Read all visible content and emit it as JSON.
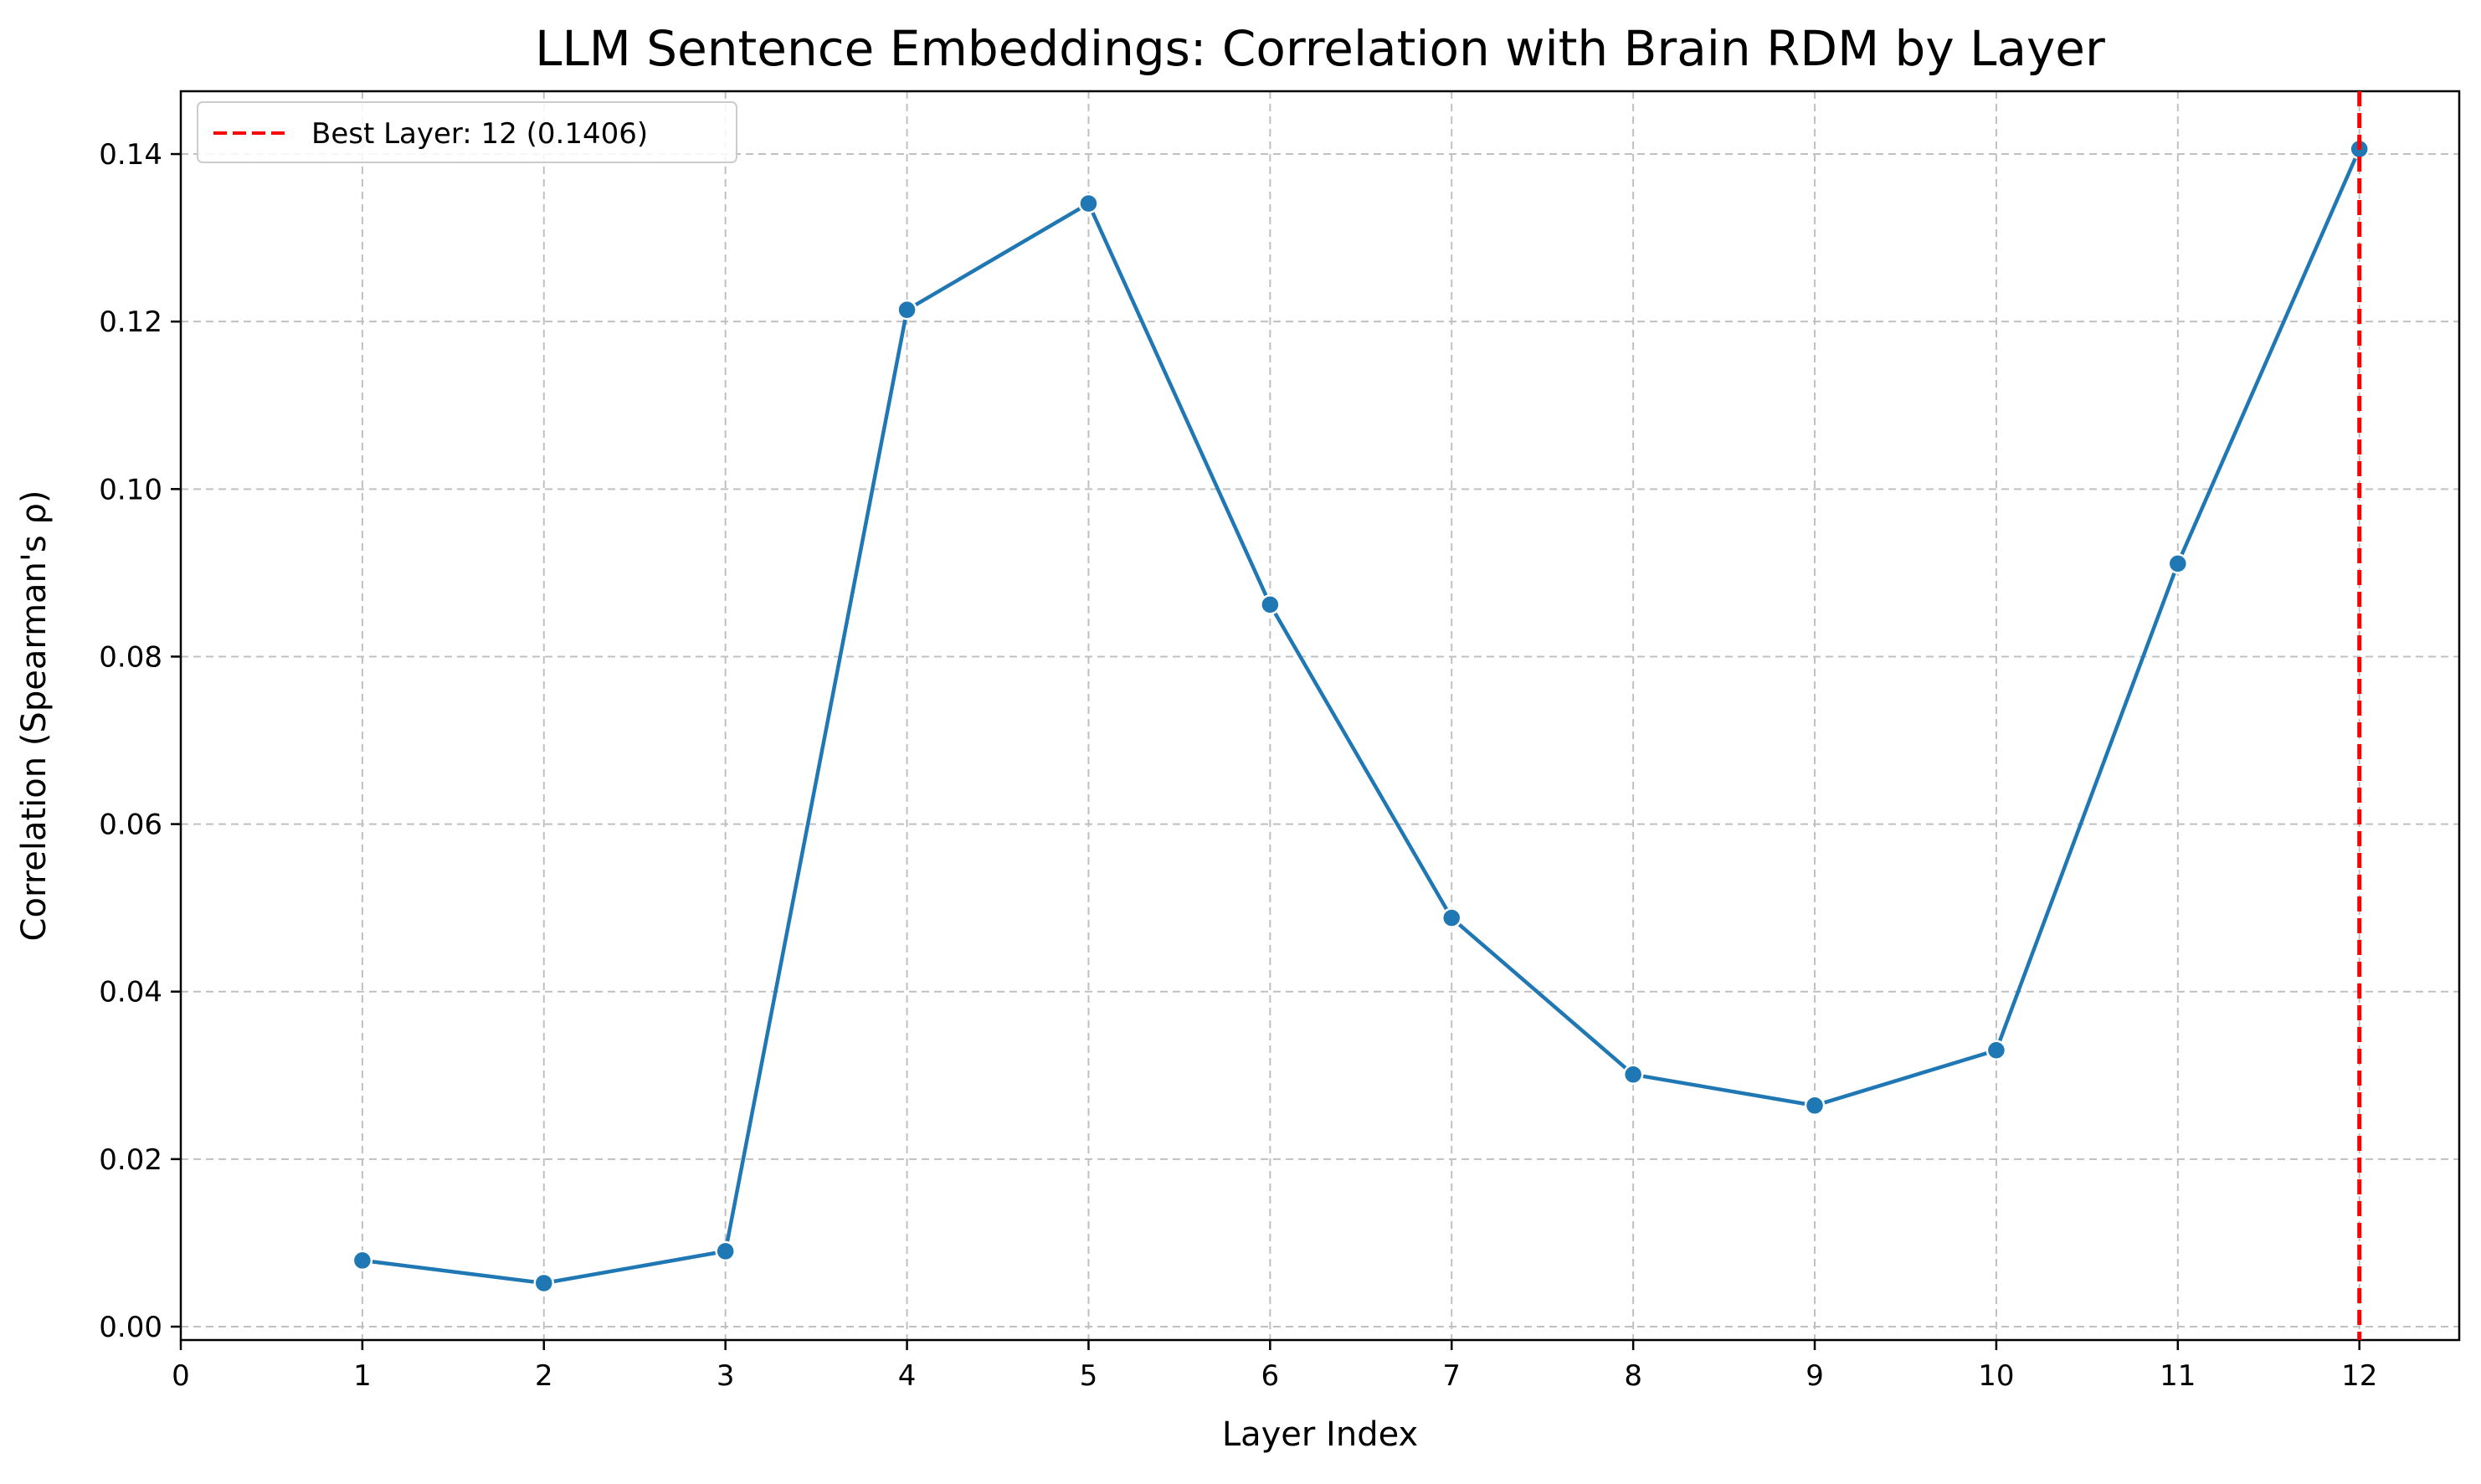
{
  "chart_data": {
    "type": "line",
    "title": "LLM Sentence Embeddings: Correlation with Brain RDM by Layer",
    "xlabel": "Layer Index",
    "ylabel": "Correlation (Spearman's ρ)",
    "xlim": [
      0,
      12.55
    ],
    "ylim": [
      -0.0016,
      0.1475
    ],
    "xticks": [
      0,
      1,
      2,
      3,
      4,
      5,
      6,
      7,
      8,
      9,
      10,
      11,
      12
    ],
    "xtick_labels": [
      "0",
      "1",
      "2",
      "3",
      "4",
      "5",
      "6",
      "7",
      "8",
      "9",
      "10",
      "11",
      "12"
    ],
    "yticks": [
      0.0,
      0.02,
      0.04,
      0.06,
      0.08,
      0.1,
      0.12,
      0.14
    ],
    "ytick_labels": [
      "0.00",
      "0.02",
      "0.04",
      "0.06",
      "0.08",
      "0.10",
      "0.12",
      "0.14"
    ],
    "grid": true,
    "series": [
      {
        "x": [
          1,
          2,
          3,
          4,
          5,
          6,
          7,
          8,
          9,
          10,
          11,
          12
        ],
        "values": [
          0.0079,
          0.0052,
          0.009,
          0.1214,
          0.1341,
          0.0862,
          0.0488,
          0.0301,
          0.0264,
          0.033,
          0.0911,
          0.1406
        ],
        "color": "#1f77b4",
        "marker": "circle"
      }
    ],
    "reference_line": {
      "orientation": "vertical",
      "x": 12,
      "color": "#ff0000",
      "style": "dashed",
      "legend_label": "Best Layer: 12 (0.1406)"
    },
    "legend": {
      "placement": "top-left",
      "entries": [
        "Best Layer: 12 (0.1406)"
      ]
    }
  }
}
